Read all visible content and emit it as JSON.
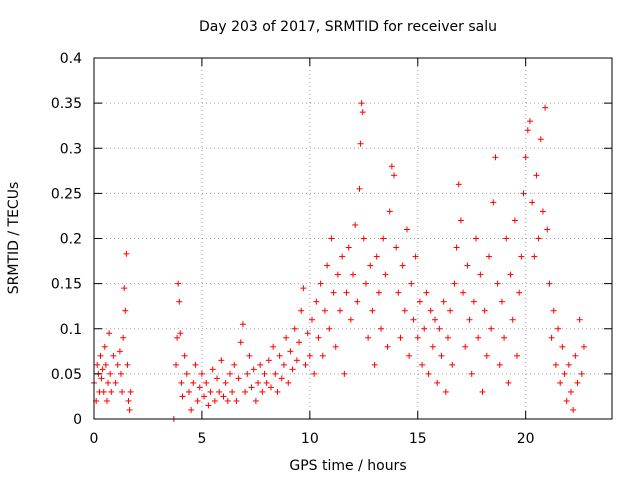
{
  "chart_data": {
    "type": "scatter",
    "title": "Day 203 of 2017, SRMTID for receiver salu",
    "xlabel": "GPS time / hours",
    "ylabel": "SRMTID / TECUs",
    "xlim": [
      0,
      24
    ],
    "ylim": [
      0,
      0.4
    ],
    "xticks": [
      0,
      5,
      10,
      15,
      20
    ],
    "xtick_labels": [
      "0",
      "5",
      "10",
      "15",
      "20"
    ],
    "yticks": [
      0,
      0.05,
      0.1,
      0.15,
      0.2,
      0.25,
      0.3,
      0.35,
      0.4
    ],
    "ytick_labels": [
      "0",
      "0.05",
      "0.1",
      "0.15",
      "0.2",
      "0.25",
      "0.3",
      "0.35",
      "0.4"
    ],
    "grid": true,
    "marker": "+",
    "color": "#ff0000",
    "series": [
      {
        "name": "SRMTID",
        "points": [
          [
            0.0,
            0.04
          ],
          [
            0.1,
            0.02
          ],
          [
            0.15,
            0.06
          ],
          [
            0.2,
            0.05
          ],
          [
            0.25,
            0.03
          ],
          [
            0.3,
            0.07
          ],
          [
            0.35,
            0.045
          ],
          [
            0.4,
            0.055
          ],
          [
            0.45,
            0.03
          ],
          [
            0.5,
            0.08
          ],
          [
            0.55,
            0.06
          ],
          [
            0.6,
            0.02
          ],
          [
            0.65,
            0.04
          ],
          [
            0.7,
            0.095
          ],
          [
            0.75,
            0.05
          ],
          [
            0.8,
            0.03
          ],
          [
            0.9,
            0.07
          ],
          [
            1.0,
            0.04
          ],
          [
            1.1,
            0.06
          ],
          [
            1.2,
            0.075
          ],
          [
            1.25,
            0.05
          ],
          [
            1.3,
            0.03
          ],
          [
            1.35,
            0.09
          ],
          [
            1.4,
            0.145
          ],
          [
            1.45,
            0.12
          ],
          [
            1.5,
            0.183
          ],
          [
            1.55,
            0.06
          ],
          [
            1.6,
            0.02
          ],
          [
            1.65,
            0.01
          ],
          [
            1.7,
            0.03
          ],
          [
            3.7,
            0.0
          ],
          [
            3.8,
            0.06
          ],
          [
            3.85,
            0.09
          ],
          [
            3.9,
            0.15
          ],
          [
            3.95,
            0.13
          ],
          [
            4.0,
            0.095
          ],
          [
            4.05,
            0.04
          ],
          [
            4.1,
            0.025
          ],
          [
            4.2,
            0.07
          ],
          [
            4.3,
            0.05
          ],
          [
            4.4,
            0.03
          ],
          [
            4.5,
            0.01
          ],
          [
            4.6,
            0.04
          ],
          [
            4.7,
            0.06
          ],
          [
            4.8,
            0.02
          ],
          [
            4.9,
            0.035
          ],
          [
            5.0,
            0.05
          ],
          [
            5.1,
            0.025
          ],
          [
            5.2,
            0.04
          ],
          [
            5.3,
            0.015
          ],
          [
            5.4,
            0.03
          ],
          [
            5.5,
            0.055
          ],
          [
            5.6,
            0.02
          ],
          [
            5.7,
            0.045
          ],
          [
            5.8,
            0.03
          ],
          [
            5.9,
            0.065
          ],
          [
            6.0,
            0.025
          ],
          [
            6.1,
            0.04
          ],
          [
            6.2,
            0.02
          ],
          [
            6.3,
            0.05
          ],
          [
            6.4,
            0.03
          ],
          [
            6.5,
            0.06
          ],
          [
            6.6,
            0.02
          ],
          [
            6.7,
            0.045
          ],
          [
            6.8,
            0.085
          ],
          [
            6.9,
            0.105
          ],
          [
            7.0,
            0.03
          ],
          [
            7.1,
            0.05
          ],
          [
            7.2,
            0.07
          ],
          [
            7.3,
            0.035
          ],
          [
            7.4,
            0.055
          ],
          [
            7.5,
            0.02
          ],
          [
            7.6,
            0.04
          ],
          [
            7.7,
            0.06
          ],
          [
            7.8,
            0.03
          ],
          [
            7.9,
            0.05
          ],
          [
            8.0,
            0.04
          ],
          [
            8.1,
            0.065
          ],
          [
            8.2,
            0.035
          ],
          [
            8.3,
            0.08
          ],
          [
            8.4,
            0.05
          ],
          [
            8.5,
            0.03
          ],
          [
            8.6,
            0.07
          ],
          [
            8.7,
            0.045
          ],
          [
            8.8,
            0.06
          ],
          [
            8.9,
            0.09
          ],
          [
            9.0,
            0.04
          ],
          [
            9.1,
            0.075
          ],
          [
            9.2,
            0.055
          ],
          [
            9.3,
            0.1
          ],
          [
            9.4,
            0.065
          ],
          [
            9.5,
            0.085
          ],
          [
            9.6,
            0.12
          ],
          [
            9.7,
            0.145
          ],
          [
            9.8,
            0.06
          ],
          [
            9.9,
            0.095
          ],
          [
            10.0,
            0.07
          ],
          [
            10.1,
            0.11
          ],
          [
            10.2,
            0.05
          ],
          [
            10.3,
            0.13
          ],
          [
            10.4,
            0.09
          ],
          [
            10.5,
            0.15
          ],
          [
            10.6,
            0.07
          ],
          [
            10.7,
            0.12
          ],
          [
            10.8,
            0.17
          ],
          [
            10.9,
            0.1
          ],
          [
            11.0,
            0.2
          ],
          [
            11.1,
            0.14
          ],
          [
            11.2,
            0.08
          ],
          [
            11.3,
            0.16
          ],
          [
            11.4,
            0.12
          ],
          [
            11.5,
            0.18
          ],
          [
            11.6,
            0.05
          ],
          [
            11.7,
            0.14
          ],
          [
            11.8,
            0.19
          ],
          [
            11.9,
            0.11
          ],
          [
            12.0,
            0.16
          ],
          [
            12.1,
            0.215
          ],
          [
            12.2,
            0.13
          ],
          [
            12.3,
            0.255
          ],
          [
            12.35,
            0.305
          ],
          [
            12.4,
            0.35
          ],
          [
            12.45,
            0.34
          ],
          [
            12.5,
            0.2
          ],
          [
            12.6,
            0.15
          ],
          [
            12.7,
            0.09
          ],
          [
            12.8,
            0.17
          ],
          [
            12.9,
            0.12
          ],
          [
            13.0,
            0.06
          ],
          [
            13.1,
            0.18
          ],
          [
            13.2,
            0.14
          ],
          [
            13.3,
            0.1
          ],
          [
            13.4,
            0.2
          ],
          [
            13.5,
            0.16
          ],
          [
            13.6,
            0.08
          ],
          [
            13.7,
            0.23
          ],
          [
            13.8,
            0.28
          ],
          [
            13.9,
            0.27
          ],
          [
            14.0,
            0.19
          ],
          [
            14.1,
            0.14
          ],
          [
            14.2,
            0.09
          ],
          [
            14.3,
            0.17
          ],
          [
            14.4,
            0.12
          ],
          [
            14.5,
            0.21
          ],
          [
            14.6,
            0.07
          ],
          [
            14.7,
            0.15
          ],
          [
            14.8,
            0.11
          ],
          [
            14.9,
            0.18
          ],
          [
            15.0,
            0.09
          ],
          [
            15.1,
            0.13
          ],
          [
            15.2,
            0.06
          ],
          [
            15.3,
            0.1
          ],
          [
            15.4,
            0.14
          ],
          [
            15.5,
            0.05
          ],
          [
            15.6,
            0.12
          ],
          [
            15.7,
            0.08
          ],
          [
            15.8,
            0.11
          ],
          [
            15.9,
            0.04
          ],
          [
            16.0,
            0.1
          ],
          [
            16.1,
            0.07
          ],
          [
            16.2,
            0.13
          ],
          [
            16.3,
            0.03
          ],
          [
            16.4,
            0.09
          ],
          [
            16.5,
            0.12
          ],
          [
            16.6,
            0.06
          ],
          [
            16.7,
            0.15
          ],
          [
            16.8,
            0.19
          ],
          [
            16.9,
            0.26
          ],
          [
            17.0,
            0.22
          ],
          [
            17.1,
            0.14
          ],
          [
            17.2,
            0.08
          ],
          [
            17.3,
            0.17
          ],
          [
            17.4,
            0.11
          ],
          [
            17.5,
            0.05
          ],
          [
            17.6,
            0.13
          ],
          [
            17.7,
            0.2
          ],
          [
            17.8,
            0.09
          ],
          [
            17.9,
            0.16
          ],
          [
            18.0,
            0.03
          ],
          [
            18.1,
            0.12
          ],
          [
            18.2,
            0.07
          ],
          [
            18.3,
            0.18
          ],
          [
            18.4,
            0.1
          ],
          [
            18.5,
            0.24
          ],
          [
            18.6,
            0.29
          ],
          [
            18.7,
            0.15
          ],
          [
            18.8,
            0.06
          ],
          [
            18.9,
            0.13
          ],
          [
            19.0,
            0.09
          ],
          [
            19.1,
            0.2
          ],
          [
            19.2,
            0.04
          ],
          [
            19.3,
            0.16
          ],
          [
            19.4,
            0.11
          ],
          [
            19.5,
            0.22
          ],
          [
            19.6,
            0.07
          ],
          [
            19.7,
            0.14
          ],
          [
            19.8,
            0.18
          ],
          [
            19.9,
            0.25
          ],
          [
            20.0,
            0.29
          ],
          [
            20.1,
            0.32
          ],
          [
            20.2,
            0.33
          ],
          [
            20.3,
            0.24
          ],
          [
            20.4,
            0.18
          ],
          [
            20.5,
            0.27
          ],
          [
            20.6,
            0.2
          ],
          [
            20.7,
            0.31
          ],
          [
            20.8,
            0.23
          ],
          [
            20.9,
            0.345
          ],
          [
            21.0,
            0.21
          ],
          [
            21.1,
            0.15
          ],
          [
            21.2,
            0.09
          ],
          [
            21.3,
            0.12
          ],
          [
            21.4,
            0.06
          ],
          [
            21.5,
            0.1
          ],
          [
            21.6,
            0.04
          ],
          [
            21.7,
            0.08
          ],
          [
            21.8,
            0.05
          ],
          [
            21.9,
            0.02
          ],
          [
            22.0,
            0.06
          ],
          [
            22.1,
            0.03
          ],
          [
            22.2,
            0.01
          ],
          [
            22.3,
            0.07
          ],
          [
            22.4,
            0.04
          ],
          [
            22.5,
            0.11
          ],
          [
            22.6,
            0.05
          ],
          [
            22.7,
            0.08
          ]
        ]
      }
    ]
  }
}
